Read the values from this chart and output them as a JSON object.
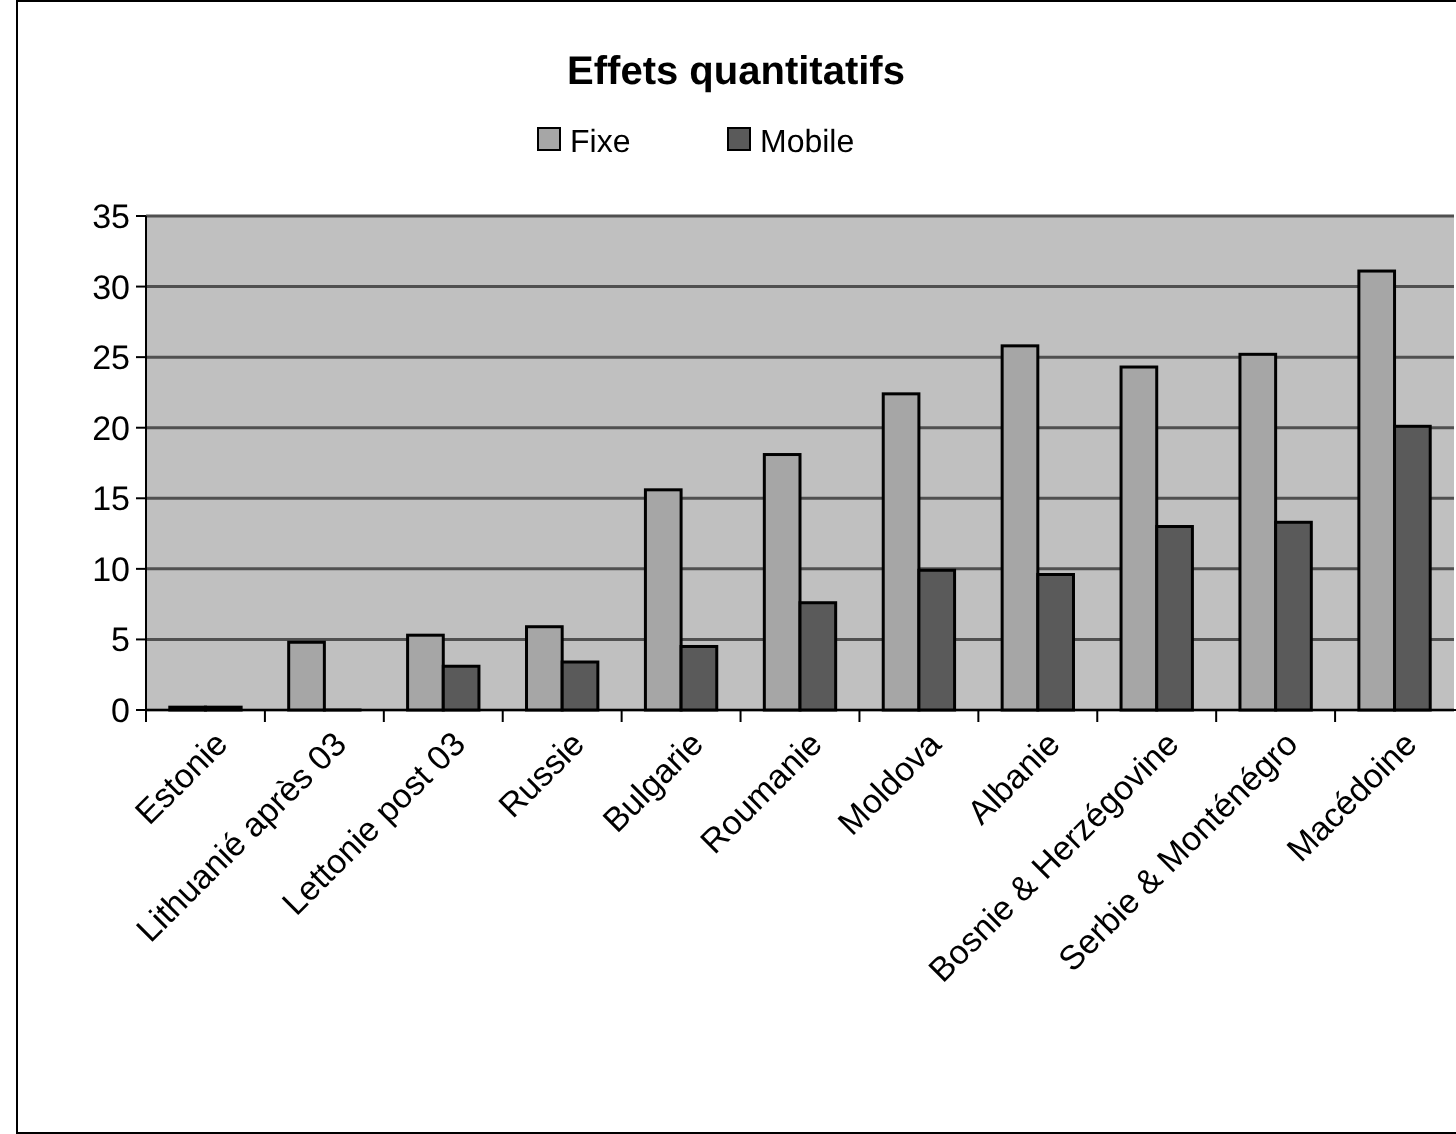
{
  "chart_data": {
    "type": "bar",
    "title": "Effets quantitatifs",
    "categories": [
      "Estonie",
      "Lithuanié après 03",
      "Lettonie post 03",
      "Russie",
      "Bulgarie",
      "Roumanie",
      "Moldova",
      "Albanie",
      "Bosnie & Herzégovine",
      "Serbie & Monténégro",
      "Macédoine"
    ],
    "series": [
      {
        "name": "Fixe",
        "color": "#a6a6a6",
        "values": [
          0.2,
          4.8,
          5.3,
          5.9,
          15.6,
          18.1,
          22.4,
          25.8,
          24.3,
          25.2,
          31.1
        ]
      },
      {
        "name": "Mobile",
        "color": "#5a5a5a",
        "values": [
          0.2,
          0,
          3.1,
          3.4,
          4.5,
          7.6,
          9.9,
          9.6,
          13.0,
          13.3,
          20.1
        ]
      }
    ],
    "ylim": [
      0,
      35
    ],
    "yticks": [
      0,
      5,
      10,
      15,
      20,
      25,
      30,
      35
    ],
    "grid": "y",
    "legend": "top"
  }
}
